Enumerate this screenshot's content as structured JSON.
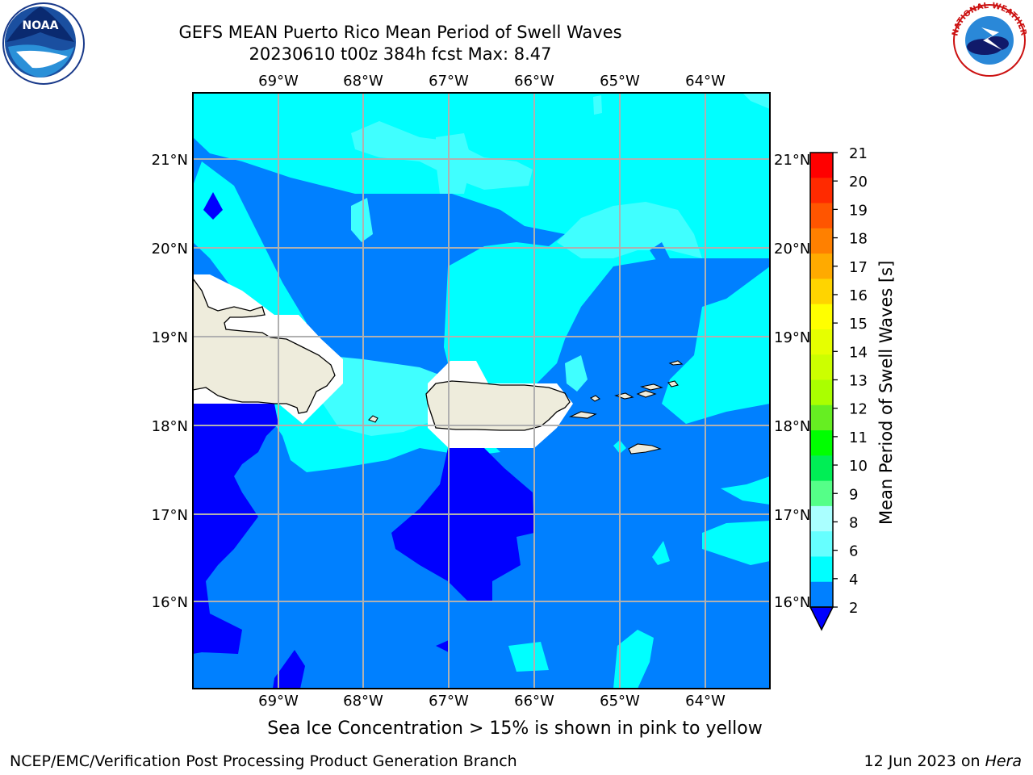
{
  "header": {
    "title_line1": "GEFS MEAN Puerto Rico Mean Period of Swell Waves",
    "title_line2": "20230610 t00z 384h fcst   Max: 8.47"
  },
  "map": {
    "lon_ticks": [
      "69°W",
      "68°W",
      "67°W",
      "66°W",
      "65°W",
      "64°W"
    ],
    "lat_ticks": [
      "21°N",
      "20°N",
      "19°N",
      "18°N",
      "17°N",
      "16°N"
    ],
    "land_color": "#eeecdc",
    "colors": {
      "below_2": "#0000ff",
      "2_4": "#0080ff",
      "4_6": "#00ffff",
      "6_8": "#40ffff",
      "8_9": "#80ffff"
    }
  },
  "colorbar": {
    "label": "Mean Period of Swell Waves [s]",
    "ticks": [
      "21",
      "20",
      "19",
      "18",
      "17",
      "16",
      "15",
      "14",
      "13",
      "12",
      "11",
      "10",
      "9",
      "8",
      "6",
      "4",
      "2"
    ],
    "colors": [
      "#ff0000",
      "#ff2a00",
      "#ff5500",
      "#ff8000",
      "#ffaa00",
      "#ffd400",
      "#ffff00",
      "#e6ff00",
      "#ccff00",
      "#aaff00",
      "#66ee22",
      "#00ff00",
      "#00ee55",
      "#55ff88",
      "#aaffff",
      "#66ffff",
      "#00ffff",
      "#0080ff"
    ],
    "extend_color": "#0000ff"
  },
  "footer": {
    "note": "Sea Ice Concentration > 15% is shown in pink to yellow",
    "left": "NCEP/EMC/Verification Post Processing Product Generation Branch",
    "right_date": "12 Jun 2023 on ",
    "right_host": "Hera"
  },
  "logos": {
    "noaa_text": "NOAA",
    "nws_text": "NATIONAL WEATHER SERVICE"
  }
}
